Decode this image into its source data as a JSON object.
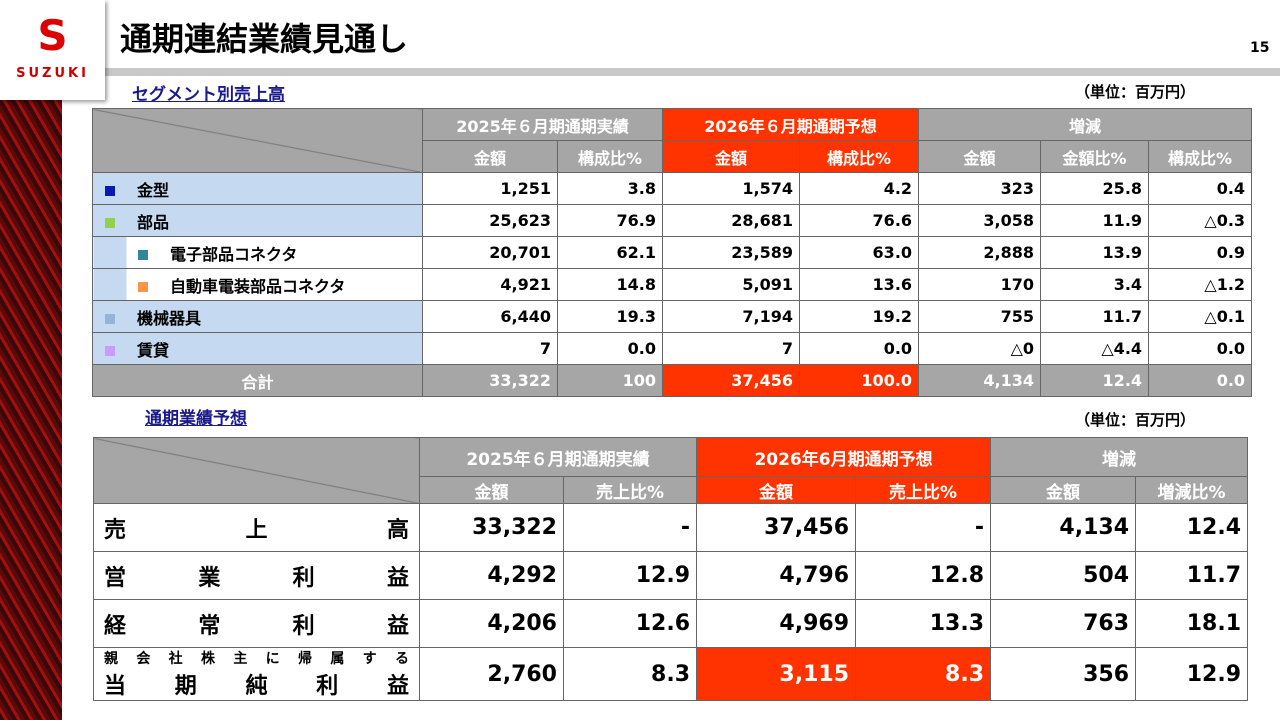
{
  "logo": {
    "brand": "SUZUKI"
  },
  "title": "通期連結業績見通し",
  "page_number": "15",
  "segment": {
    "heading": "セグメント別売上高",
    "unit": "（単位：百万円）",
    "groups": [
      "2025年６月期通期実績",
      "2026年６月期通期予想",
      "増減"
    ],
    "subheaders": [
      "金額",
      "構成比%",
      "金額",
      "構成比%",
      "金額",
      "金額比%",
      "構成比%"
    ],
    "rows": [
      {
        "label": "金型",
        "color": "#0a1ab0",
        "indent": false,
        "values": [
          "1,251",
          "3.8",
          "1,574",
          "4.2",
          "323",
          "25.8",
          "0.4"
        ]
      },
      {
        "label": "部品",
        "color": "#92d050",
        "indent": false,
        "values": [
          "25,623",
          "76.9",
          "28,681",
          "76.6",
          "3,058",
          "11.9",
          "△0.3"
        ]
      },
      {
        "label": "電子部品コネクタ",
        "color": "#31859c",
        "indent": true,
        "values": [
          "20,701",
          "62.1",
          "23,589",
          "63.0",
          "2,888",
          "13.9",
          "0.9"
        ]
      },
      {
        "label": "自動車電装部品コネクタ",
        "color": "#f79646",
        "indent": true,
        "values": [
          "4,921",
          "14.8",
          "5,091",
          "13.6",
          "170",
          "3.4",
          "△1.2"
        ]
      },
      {
        "label": "機械器具",
        "color": "#95b3d7",
        "indent": false,
        "values": [
          "6,440",
          "19.3",
          "7,194",
          "19.2",
          "755",
          "11.7",
          "△0.1"
        ]
      },
      {
        "label": "賃貸",
        "color": "#cc99ff",
        "indent": false,
        "values": [
          "7",
          "0.0",
          "7",
          "0.0",
          "△0",
          "△4.4",
          "0.0"
        ]
      }
    ],
    "total": {
      "label": "合計",
      "values": [
        "33,322",
        "100",
        "37,456",
        "100.0",
        "4,134",
        "12.4",
        "0.0"
      ]
    }
  },
  "forecast": {
    "heading": "通期業績予想",
    "unit": "（単位：百万円）",
    "groups": [
      "2025年６月期通期実績",
      "2026年6月期通期予想",
      "増減"
    ],
    "subheaders": [
      "金額",
      "売上比%",
      "金額",
      "売上比%",
      "金額",
      "増減比%"
    ],
    "rows": [
      {
        "label": "売上高",
        "values": [
          "33,322",
          "-",
          "37,456",
          "-",
          "4,134",
          "12.4"
        ]
      },
      {
        "label": "営業利益",
        "values": [
          "4,292",
          "12.9",
          "4,796",
          "12.8",
          "504",
          "11.7"
        ]
      },
      {
        "label": "経常利益",
        "values": [
          "4,206",
          "12.6",
          "4,969",
          "13.3",
          "763",
          "18.1"
        ]
      },
      {
        "label_top": "親会社株主に帰属する",
        "label": "当期純利益",
        "values": [
          "2,760",
          "8.3",
          "3,115",
          "8.3",
          "356",
          "12.9"
        ],
        "highlight": [
          2,
          3
        ]
      }
    ]
  },
  "colors": {
    "accent": "#ff3300",
    "header_gray": "#a6a6a6",
    "label_blue": "#c5d9f1"
  }
}
